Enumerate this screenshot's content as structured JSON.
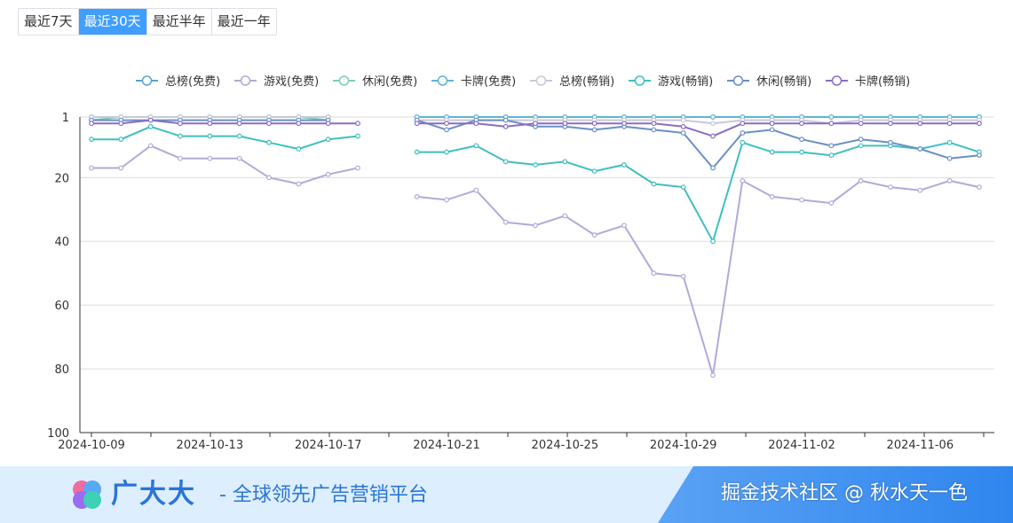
{
  "range_tabs": [
    {
      "label": "最近7天",
      "active": false
    },
    {
      "label": "最近30天",
      "active": true
    },
    {
      "label": "最近半年",
      "active": false
    },
    {
      "label": "最近一年",
      "active": false
    }
  ],
  "chart_data": {
    "type": "line",
    "legend_position": "top",
    "y_inverted": true,
    "ylim": [
      1,
      100
    ],
    "yticks": [
      1,
      20,
      40,
      60,
      80,
      100
    ],
    "grid": true,
    "x": [
      "2024-10-09",
      "2024-10-10",
      "2024-10-11",
      "2024-10-12",
      "2024-10-13",
      "2024-10-14",
      "2024-10-15",
      "2024-10-16",
      "2024-10-17",
      "2024-10-18",
      "2024-10-19",
      "2024-10-20",
      "2024-10-21",
      "2024-10-22",
      "2024-10-23",
      "2024-10-24",
      "2024-10-25",
      "2024-10-26",
      "2024-10-27",
      "2024-10-28",
      "2024-10-29",
      "2024-10-30",
      "2024-10-31",
      "2024-11-01",
      "2024-11-02",
      "2024-11-03",
      "2024-11-04",
      "2024-11-05",
      "2024-11-06",
      "2024-11-07",
      "2024-11-08"
    ],
    "xtick_labels": [
      "2024-10-09",
      "2024-10-13",
      "2024-10-17",
      "2024-10-21",
      "2024-10-25",
      "2024-10-29",
      "2024-11-02",
      "2024-11-06"
    ],
    "series": [
      {
        "name": "总榜(免费)",
        "color": "#5ba3d0",
        "values": [
          1,
          1,
          1,
          1,
          1,
          1,
          1,
          1,
          1,
          null,
          null,
          1,
          1,
          1,
          1,
          1,
          1,
          1,
          1,
          1,
          1,
          1,
          1,
          1,
          1,
          1,
          1,
          1,
          1,
          1,
          1
        ]
      },
      {
        "name": "游戏(免费)",
        "color": "#b0aad8",
        "values": [
          1,
          1,
          1,
          1,
          1,
          1,
          1,
          1,
          1,
          null,
          null,
          1,
          1,
          1,
          1,
          1,
          1,
          1,
          1,
          1,
          1,
          1,
          1,
          1,
          1,
          1,
          1,
          1,
          1,
          1,
          1
        ]
      },
      {
        "name": "休闲(免费)",
        "color": "#7ccfb8",
        "values": [
          2,
          1,
          1,
          1,
          1,
          1,
          1,
          1,
          2,
          null,
          null,
          1,
          1,
          1,
          1,
          1,
          1,
          1,
          1,
          1,
          1,
          1,
          1,
          1,
          1,
          1,
          1,
          1,
          1,
          1,
          1
        ]
      },
      {
        "name": "卡牌(免费)",
        "color": "#5fb4d8",
        "values": [
          1,
          1,
          1,
          1,
          1,
          1,
          1,
          1,
          1,
          null,
          null,
          1,
          1,
          1,
          1,
          1,
          1,
          1,
          1,
          1,
          1,
          1,
          1,
          1,
          1,
          1,
          1,
          1,
          1,
          1,
          1
        ]
      },
      {
        "name": "总榜(畅销)",
        "color": "#c8c8d8",
        "values": [
          1,
          1,
          1,
          1,
          1,
          1,
          1,
          1,
          1,
          null,
          null,
          2,
          2,
          2,
          2,
          2,
          2,
          2,
          2,
          2,
          2,
          3,
          2,
          2,
          2,
          3,
          2,
          2,
          2,
          2,
          2
        ]
      },
      {
        "name": "游戏(畅销)",
        "color": "#3fbfbf",
        "values": [
          8,
          8,
          4,
          7,
          7,
          7,
          9,
          11,
          8,
          7,
          null,
          12,
          12,
          10,
          15,
          16,
          15,
          18,
          16,
          22,
          23,
          40,
          9,
          12,
          12,
          13,
          10,
          10,
          11,
          9,
          12
        ]
      },
      {
        "name": "休闲(畅销)",
        "color": "#6a8fc8",
        "values": [
          2,
          2,
          2,
          2,
          2,
          2,
          2,
          2,
          2,
          null,
          null,
          2,
          5,
          2,
          2,
          4,
          4,
          5,
          4,
          5,
          6,
          17,
          6,
          5,
          8,
          10,
          8,
          9,
          11,
          14,
          13
        ]
      },
      {
        "name": "卡牌(畅销)",
        "color": "#8a6cc6",
        "values": [
          3,
          3,
          2,
          3,
          3,
          3,
          3,
          3,
          3,
          3,
          null,
          3,
          3,
          3,
          4,
          3,
          3,
          3,
          3,
          3,
          4,
          7,
          3,
          3,
          3,
          3,
          3,
          3,
          3,
          3,
          3
        ]
      },
      {
        "name": "",
        "color": "#b5a8d8",
        "values": [
          17,
          17,
          10,
          14,
          14,
          14,
          20,
          22,
          19,
          17,
          null,
          26,
          27,
          24,
          34,
          35,
          32,
          38,
          35,
          50,
          51,
          82,
          21,
          26,
          27,
          28,
          21,
          23,
          24,
          21,
          23
        ]
      }
    ]
  },
  "banner": {
    "brand": "广大大",
    "slogan": "- 全球领先广告营销平台",
    "watermark": "掘金技术社区 @ 秋水天一色"
  }
}
